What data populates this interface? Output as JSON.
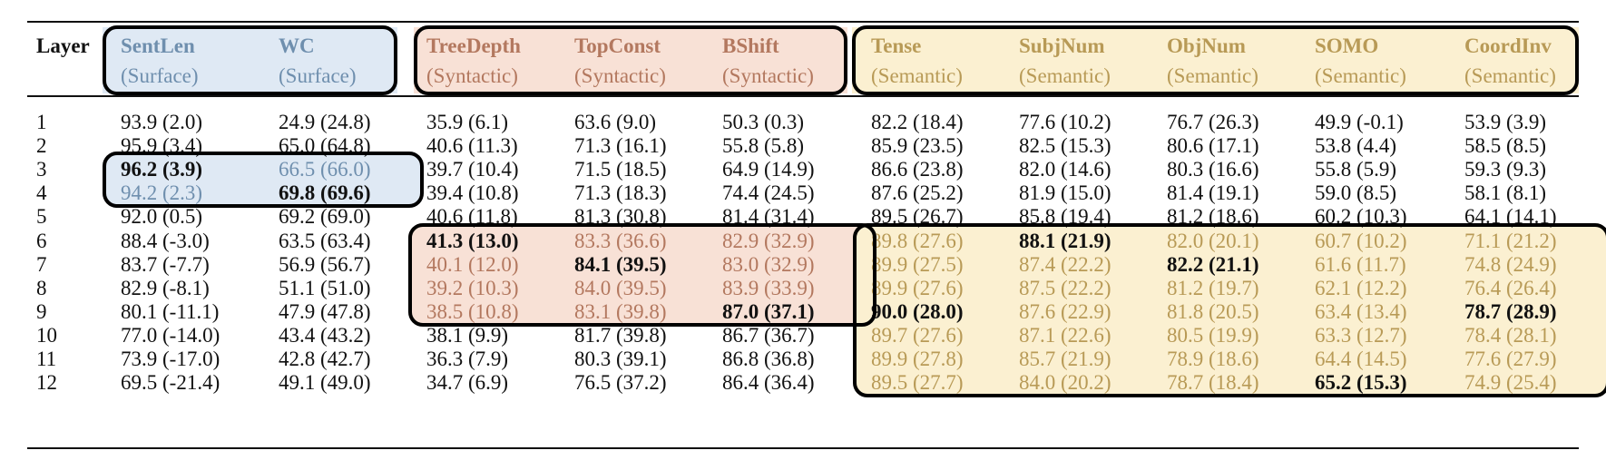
{
  "colors": {
    "surface_bg": "#dfe9f4",
    "surface_text": "#6f8fae",
    "syntactic_bg": "#f8e1d6",
    "syntactic_text": "#b3785f",
    "semantic_bg": "#fbf0d1",
    "semantic_text": "#b89a56",
    "ink": "#111111"
  },
  "header": {
    "layer_label": "Layer",
    "columns": [
      {
        "name": "SentLen",
        "type": "(Surface)",
        "group": "surface"
      },
      {
        "name": "WC",
        "type": "(Surface)",
        "group": "surface"
      },
      {
        "name": "TreeDepth",
        "type": "(Syntactic)",
        "group": "syntactic"
      },
      {
        "name": "TopConst",
        "type": "(Syntactic)",
        "group": "syntactic"
      },
      {
        "name": "BShift",
        "type": "(Syntactic)",
        "group": "syntactic"
      },
      {
        "name": "Tense",
        "type": "(Semantic)",
        "group": "semantic"
      },
      {
        "name": "SubjNum",
        "type": "(Semantic)",
        "group": "semantic"
      },
      {
        "name": "ObjNum",
        "type": "(Semantic)",
        "group": "semantic"
      },
      {
        "name": "SOMO",
        "type": "(Semantic)",
        "group": "semantic"
      },
      {
        "name": "CoordInv",
        "type": "(Semantic)",
        "group": "semantic"
      }
    ]
  },
  "rows": [
    {
      "layer": "1",
      "values": [
        "93.9 (2.0)",
        "24.9 (24.8)",
        "35.9 (6.1)",
        "63.6 (9.0)",
        "50.3 (0.3)",
        "82.2 (18.4)",
        "77.6 (10.2)",
        "76.7 (26.3)",
        "49.9 (-0.1)",
        "53.9 (3.9)"
      ]
    },
    {
      "layer": "2",
      "values": [
        "95.9 (3.4)",
        "65.0 (64.8)",
        "40.6 (11.3)",
        "71.3 (16.1)",
        "55.8 (5.8)",
        "85.9 (23.5)",
        "82.5 (15.3)",
        "80.6 (17.1)",
        "53.8 (4.4)",
        "58.5 (8.5)"
      ]
    },
    {
      "layer": "3",
      "values": [
        "96.2 (3.9)",
        "66.5 (66.0)",
        "39.7 (10.4)",
        "71.5 (18.5)",
        "64.9 (14.9)",
        "86.6 (23.8)",
        "82.0 (14.6)",
        "80.3 (16.6)",
        "55.8 (5.9)",
        "59.3 (9.3)"
      ]
    },
    {
      "layer": "4",
      "values": [
        "94.2 (2.3)",
        "69.8 (69.6)",
        "39.4 (10.8)",
        "71.3 (18.3)",
        "74.4 (24.5)",
        "87.6 (25.2)",
        "81.9 (15.0)",
        "81.4 (19.1)",
        "59.0 (8.5)",
        "58.1 (8.1)"
      ]
    },
    {
      "layer": "5",
      "values": [
        "92.0 (0.5)",
        "69.2 (69.0)",
        "40.6 (11.8)",
        "81.3 (30.8)",
        "81.4 (31.4)",
        "89.5 (26.7)",
        "85.8 (19.4)",
        "81.2 (18.6)",
        "60.2 (10.3)",
        "64.1 (14.1)"
      ]
    },
    {
      "layer": "6",
      "values": [
        "88.4 (-3.0)",
        "63.5 (63.4)",
        "41.3 (13.0)",
        "83.3 (36.6)",
        "82.9 (32.9)",
        "89.8 (27.6)",
        "88.1 (21.9)",
        "82.0 (20.1)",
        "60.7 (10.2)",
        "71.1 (21.2)"
      ]
    },
    {
      "layer": "7",
      "values": [
        "83.7 (-7.7)",
        "56.9 (56.7)",
        "40.1 (12.0)",
        "84.1 (39.5)",
        "83.0 (32.9)",
        "89.9 (27.5)",
        "87.4 (22.2)",
        "82.2 (21.1)",
        "61.6 (11.7)",
        "74.8 (24.9)"
      ]
    },
    {
      "layer": "8",
      "values": [
        "82.9 (-8.1)",
        "51.1 (51.0)",
        "39.2 (10.3)",
        "84.0 (39.5)",
        "83.9 (33.9)",
        "89.9 (27.6)",
        "87.5 (22.2)",
        "81.2 (19.7)",
        "62.1 (12.2)",
        "76.4 (26.4)"
      ]
    },
    {
      "layer": "9",
      "values": [
        "80.1 (-11.1)",
        "47.9 (47.8)",
        "38.5 (10.8)",
        "83.1 (39.8)",
        "87.0 (37.1)",
        "90.0 (28.0)",
        "87.6 (22.9)",
        "81.8 (20.5)",
        "63.4 (13.4)",
        "78.7 (28.9)"
      ]
    },
    {
      "layer": "10",
      "values": [
        "77.0 (-14.0)",
        "43.4 (43.2)",
        "38.1 (9.9)",
        "81.7 (39.8)",
        "86.7 (36.7)",
        "89.7 (27.6)",
        "87.1 (22.6)",
        "80.5 (19.9)",
        "63.3 (12.7)",
        "78.4 (28.1)"
      ]
    },
    {
      "layer": "11",
      "values": [
        "73.9 (-17.0)",
        "42.8 (42.7)",
        "36.3 (7.9)",
        "80.3 (39.1)",
        "86.8 (36.8)",
        "89.9 (27.8)",
        "85.7 (21.9)",
        "78.9 (18.6)",
        "64.4 (14.5)",
        "77.6 (27.9)"
      ]
    },
    {
      "layer": "12",
      "values": [
        "69.5 (-21.4)",
        "49.1 (49.0)",
        "34.7 (6.9)",
        "76.5 (37.2)",
        "86.4 (36.4)",
        "89.5 (27.7)",
        "84.0 (20.2)",
        "78.7 (18.4)",
        "65.2 (15.3)",
        "74.9 (25.4)"
      ]
    }
  ],
  "bold_cells": [
    [
      2,
      0
    ],
    [
      3,
      1
    ],
    [
      5,
      2
    ],
    [
      6,
      3
    ],
    [
      8,
      4
    ],
    [
      8,
      5
    ],
    [
      5,
      6
    ],
    [
      6,
      7
    ],
    [
      11,
      8
    ],
    [
      8,
      9
    ]
  ],
  "highlighted_regions": [
    {
      "group": "surface",
      "first_row": 2,
      "last_row": 3,
      "first_col": 0,
      "last_col": 1
    },
    {
      "group": "syntactic",
      "first_row": 5,
      "last_row": 8,
      "first_col": 2,
      "last_col": 4
    },
    {
      "group": "semantic",
      "first_row": 5,
      "last_row": 11,
      "first_col": 5,
      "last_col": 9
    }
  ]
}
